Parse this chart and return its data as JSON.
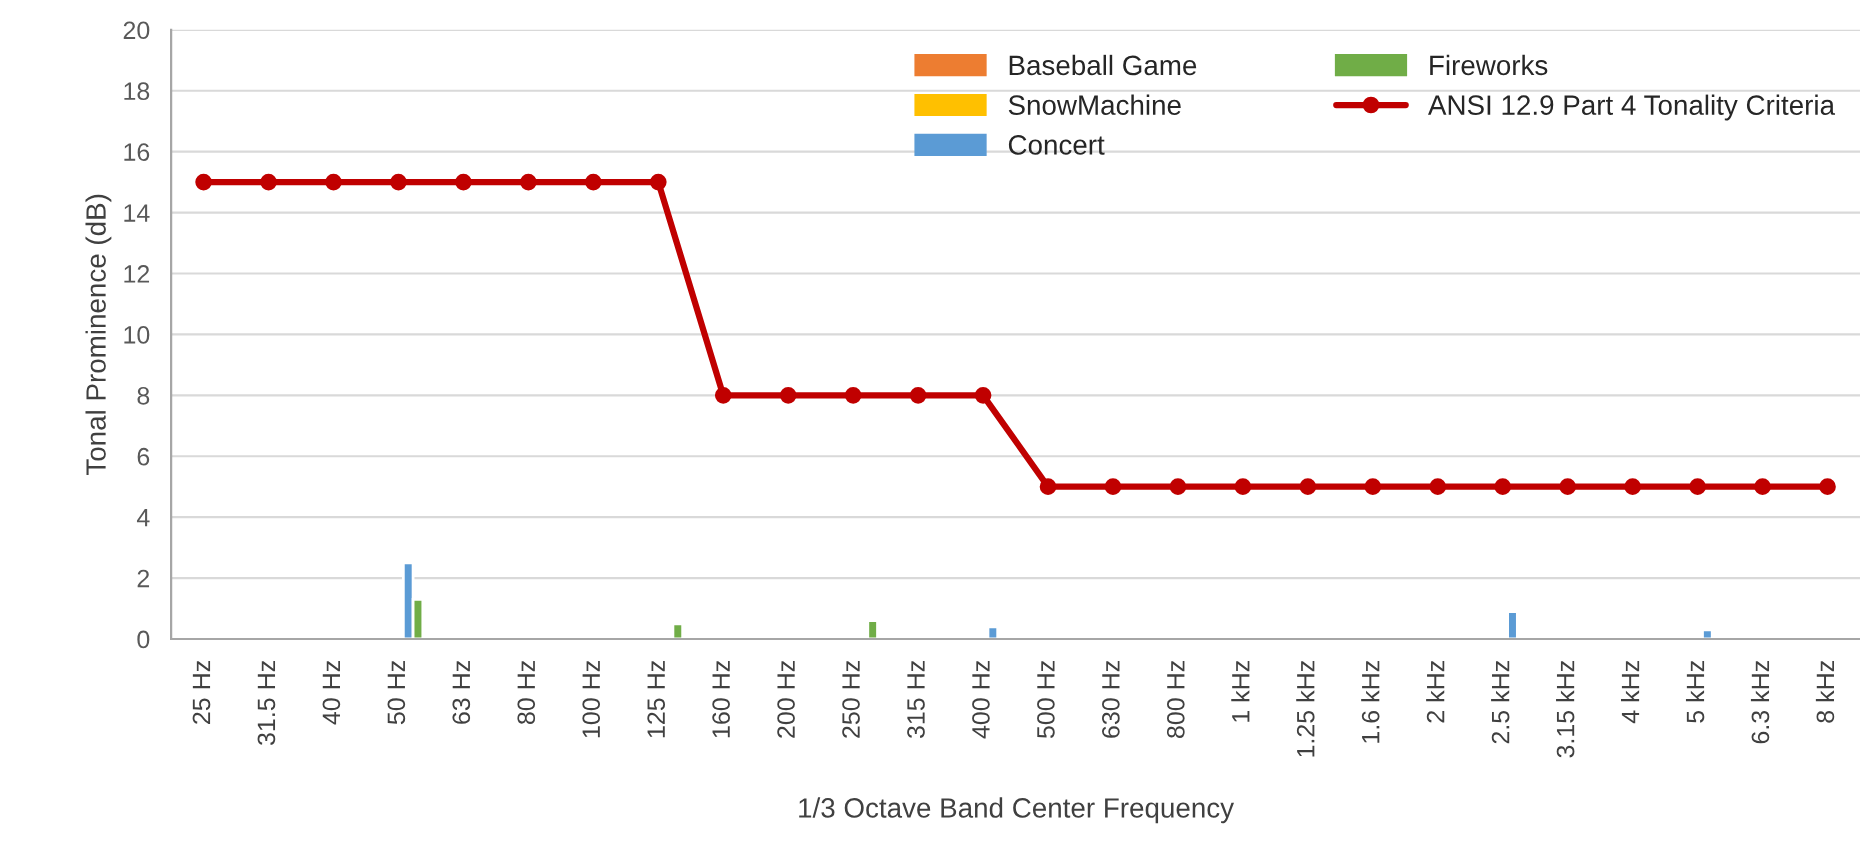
{
  "chart_data": {
    "type": "bar",
    "xlabel": "1/3 Octave Band Center Frequency",
    "ylabel": "Tonal Prominence (dB)",
    "categories": [
      "25 Hz",
      "31.5 Hz",
      "40 Hz",
      "50 Hz",
      "63 Hz",
      "80 Hz",
      "100 Hz",
      "125 Hz",
      "160 Hz",
      "200 Hz",
      "250 Hz",
      "315 Hz",
      "400 Hz",
      "500 Hz",
      "630 Hz",
      "800 Hz",
      "1 kHz",
      "1.25 kHz",
      "1.6 kHz",
      "2 kHz",
      "2.5 kHz",
      "3.15 kHz",
      "4 kHz",
      "5 kHz",
      "6.3 kHz",
      "8 kHz"
    ],
    "series": [
      {
        "color": "#4472c4",
        "values": [
          null,
          null,
          null,
          null,
          null,
          null,
          null,
          null,
          null,
          null,
          null,
          null,
          null,
          null,
          null,
          null,
          null,
          null,
          null,
          null,
          null,
          null,
          null,
          null,
          null,
          null
        ]
      },
      {
        "name": "Baseball Game",
        "color": "#ed7d31",
        "values": [
          null,
          null,
          null,
          null,
          null,
          null,
          null,
          null,
          null,
          null,
          null,
          null,
          null,
          null,
          null,
          null,
          null,
          null,
          null,
          null,
          null,
          null,
          null,
          null,
          null,
          null
        ]
      },
      {
        "name": "SnowMachine",
        "color": "#ffc000",
        "values": [
          null,
          null,
          null,
          null,
          null,
          null,
          null,
          null,
          null,
          null,
          null,
          null,
          null,
          null,
          null,
          null,
          null,
          null,
          null,
          null,
          null,
          null,
          null,
          null,
          null,
          null
        ]
      },
      {
        "name": "Concert",
        "color": "#5b9bd5",
        "values": [
          null,
          null,
          null,
          2.5,
          null,
          null,
          null,
          null,
          null,
          null,
          null,
          null,
          0.4,
          null,
          null,
          null,
          null,
          null,
          null,
          null,
          0.9,
          null,
          null,
          0.3,
          null,
          null
        ]
      },
      {
        "name": "Fireworks",
        "color": "#70ad47",
        "values": [
          null,
          null,
          null,
          1.3,
          null,
          null,
          null,
          0.5,
          null,
          null,
          0.6,
          null,
          null,
          null,
          null,
          null,
          null,
          null,
          null,
          null,
          null,
          null,
          null,
          null,
          null,
          null
        ]
      },
      {
        "name": "ANSI 12.9 Part 4 Tonality Criteria",
        "type": "line",
        "color": "#c00000",
        "marker": "circle",
        "line_style": "solid",
        "values": [
          15,
          15,
          15,
          15,
          15,
          15,
          15,
          15,
          8,
          8,
          8,
          8,
          8,
          5,
          5,
          5,
          5,
          5,
          5,
          5,
          5,
          5,
          5,
          5,
          5,
          5
        ]
      }
    ],
    "ylim": [
      0,
      20
    ],
    "yticks": [
      0,
      2,
      4,
      6,
      8,
      10,
      12,
      14,
      16,
      18,
      20
    ],
    "grid": "y",
    "legend": "top right"
  }
}
